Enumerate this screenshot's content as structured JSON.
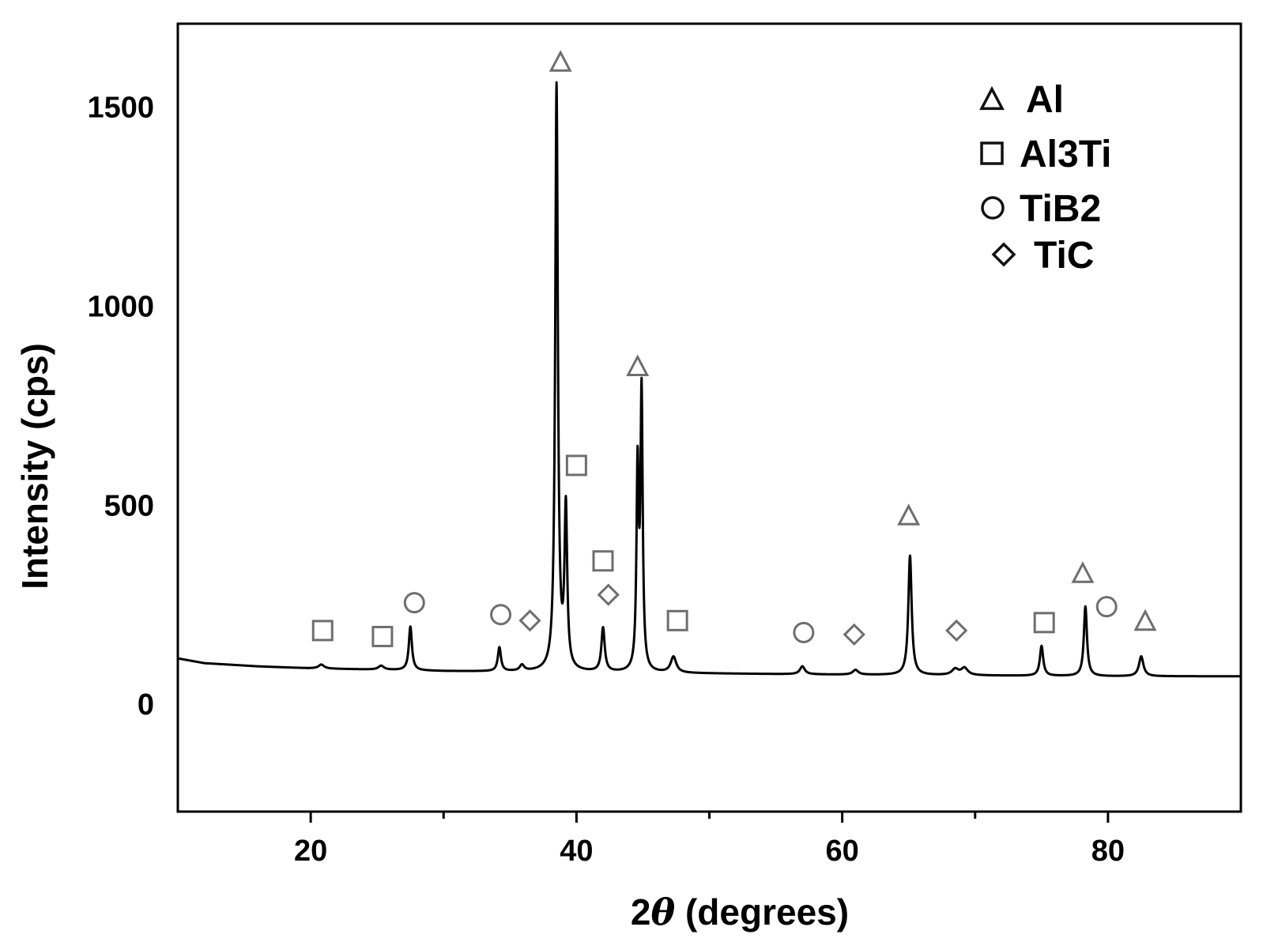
{
  "chart_data": {
    "type": "line",
    "xlabel_prefix": "2",
    "xlabel_symbol": "θ",
    "xlabel_suffix": " (degrees)",
    "ylabel": "Intensity (cps)",
    "xlim": [
      10,
      90
    ],
    "ylim": [
      -270,
      1710
    ],
    "xticks": [
      20,
      40,
      60,
      80
    ],
    "xtick_minor": [
      30,
      50,
      70
    ],
    "yticks": [
      0,
      500,
      1000,
      1500
    ],
    "grid": false,
    "legend_position": "top-right",
    "legend": [
      {
        "marker": "triangle",
        "label": "Al"
      },
      {
        "marker": "square",
        "label": "Al3Ti"
      },
      {
        "marker": "circle",
        "label": "TiB2"
      },
      {
        "marker": "diamond",
        "label": "TiC"
      }
    ],
    "series": [
      {
        "baseline": [
          [
            10,
            115
          ],
          [
            12,
            103
          ],
          [
            16,
            95
          ],
          [
            20,
            90
          ],
          [
            30,
            83
          ],
          [
            40,
            80
          ],
          [
            60,
            74
          ],
          [
            80,
            70
          ],
          [
            90,
            70
          ]
        ],
        "peaks": [
          {
            "x": 20.8,
            "y": 10,
            "width": 0.25
          },
          {
            "x": 25.3,
            "y": 10,
            "width": 0.25
          },
          {
            "x": 27.5,
            "y": 110,
            "width": 0.14
          },
          {
            "x": 34.2,
            "y": 60,
            "width": 0.14
          },
          {
            "x": 35.9,
            "y": 15,
            "width": 0.2
          },
          {
            "x": 38.5,
            "y": 1470,
            "width": 0.12
          },
          {
            "x": 39.2,
            "y": 400,
            "width": 0.12
          },
          {
            "x": 42.0,
            "y": 110,
            "width": 0.15
          },
          {
            "x": 44.6,
            "y": 500,
            "width": 0.1
          },
          {
            "x": 44.9,
            "y": 690,
            "width": 0.1
          },
          {
            "x": 47.3,
            "y": 40,
            "width": 0.25
          },
          {
            "x": 57.0,
            "y": 20,
            "width": 0.22
          },
          {
            "x": 61.0,
            "y": 12,
            "width": 0.25
          },
          {
            "x": 65.1,
            "y": 300,
            "width": 0.15
          },
          {
            "x": 68.5,
            "y": 15,
            "width": 0.3
          },
          {
            "x": 69.2,
            "y": 18,
            "width": 0.3
          },
          {
            "x": 75.0,
            "y": 75,
            "width": 0.15
          },
          {
            "x": 78.3,
            "y": 175,
            "width": 0.14
          },
          {
            "x": 82.5,
            "y": 50,
            "width": 0.2
          }
        ]
      }
    ],
    "annotations": [
      {
        "marker": "triangle",
        "x": 38.8,
        "y": 1615
      },
      {
        "marker": "triangle",
        "x": 44.6,
        "y": 850
      },
      {
        "marker": "triangle",
        "x": 65.0,
        "y": 475
      },
      {
        "marker": "triangle",
        "x": 78.1,
        "y": 330
      },
      {
        "marker": "triangle",
        "x": 82.8,
        "y": 210
      },
      {
        "marker": "square",
        "x": 20.9,
        "y": 185
      },
      {
        "marker": "square",
        "x": 25.4,
        "y": 170
      },
      {
        "marker": "square",
        "x": 40.0,
        "y": 600
      },
      {
        "marker": "square",
        "x": 42.0,
        "y": 360
      },
      {
        "marker": "square",
        "x": 47.6,
        "y": 210
      },
      {
        "marker": "square",
        "x": 75.2,
        "y": 205
      },
      {
        "marker": "circle",
        "x": 27.8,
        "y": 255
      },
      {
        "marker": "circle",
        "x": 34.3,
        "y": 225
      },
      {
        "marker": "circle",
        "x": 57.1,
        "y": 180
      },
      {
        "marker": "circle",
        "x": 79.9,
        "y": 245
      },
      {
        "marker": "diamond",
        "x": 36.5,
        "y": 210
      },
      {
        "marker": "diamond",
        "x": 42.4,
        "y": 275
      },
      {
        "marker": "diamond",
        "x": 60.9,
        "y": 175
      },
      {
        "marker": "diamond",
        "x": 68.6,
        "y": 185
      }
    ]
  }
}
